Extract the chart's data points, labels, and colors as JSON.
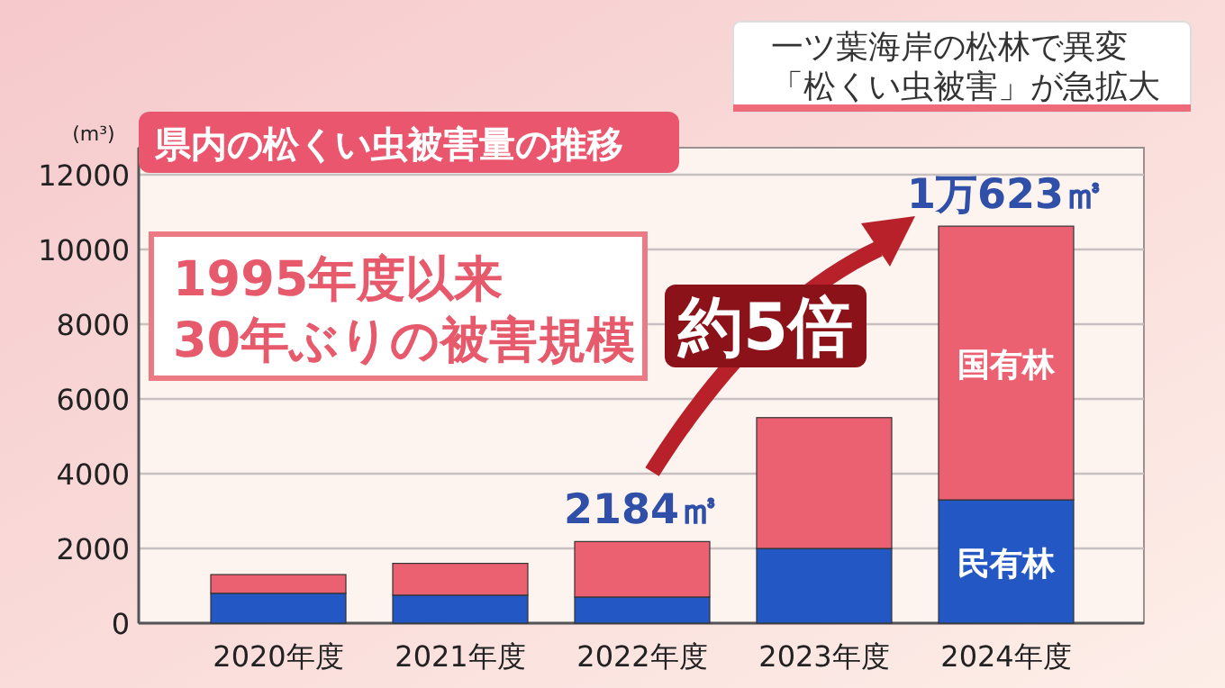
{
  "chart_data": {
    "type": "bar",
    "title": "県内の松くい虫被害量の推移",
    "ylabel": "(m³)",
    "categories": [
      "2020年度",
      "2021年度",
      "2022年度",
      "2023年度",
      "2024年度"
    ],
    "stacked": true,
    "series": [
      {
        "name": "民有林",
        "color": "#2358c4",
        "values": [
          800,
          750,
          700,
          2000,
          3300
        ]
      },
      {
        "name": "国有林",
        "color": "#ec6172",
        "values": [
          500,
          850,
          1484,
          3500,
          7323
        ]
      }
    ],
    "totals": [
      null,
      null,
      "2184㎥",
      null,
      "1万623㎥"
    ],
    "ylim": [
      0,
      12000
    ],
    "yticks": [
      0,
      2000,
      4000,
      6000,
      8000,
      10000,
      12000
    ],
    "grid": "y",
    "annotations": [
      "1995年度以来\n30年ぶりの被害規模",
      "約5倍",
      "一ツ葉海岸の松林で異変",
      "「松くい虫被害」が急拡大"
    ]
  }
}
